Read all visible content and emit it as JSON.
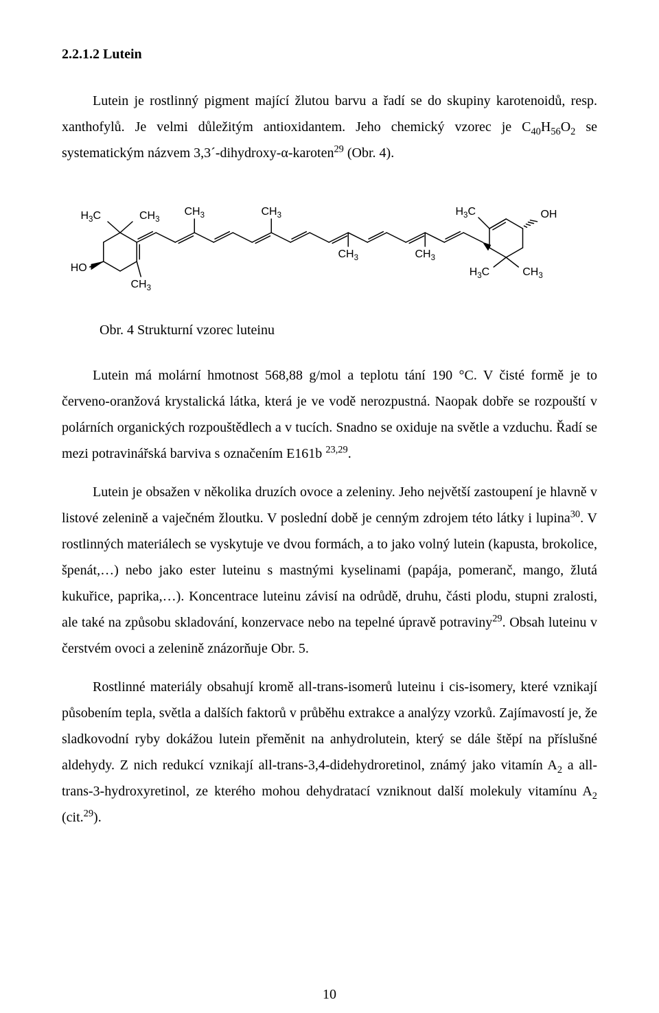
{
  "heading": "2.2.1.2 Lutein",
  "para1_before_formula": "Lutein je rostlinný pigment mající žlutou barvu a řadí se do skupiny karotenoidů, resp. xanthofylů. Je velmi důležitým antioxidantem. Jeho chemický vzorec je ",
  "formula_parts": {
    "c": "C",
    "c_sub": "40",
    "h": "H",
    "h_sub": "56",
    "o": "O",
    "o_sub": "2"
  },
  "para1_after_formula": " se systematickým názvem 3,3´-dihydroxy-α-karoten",
  "para1_sup": "29",
  "para1_tail": " (Obr. 4).",
  "fig_caption": "Obr. 4 Strukturní vzorec luteinu",
  "para2_a": "Lutein má molární hmotnost 568,88 g/mol a teplotu tání 190 °C. V čisté formě je to červeno-oranžová krystalická látka, která je ve vodě nerozpustná. Naopak dobře se rozpouští v polárních organických rozpouštědlech a v tucích. Snadno se oxiduje na světle a vzduchu. Řadí se mezi potravinářská barviva s označením E161b ",
  "para2_sup": "23,29",
  "para2_b": ".",
  "para3_a": "Lutein je obsažen v několika druzích ovoce a zeleniny. Jeho největší zastoupení je hlavně v listové zelenině a vaječném žloutku. V poslední době je cenným zdrojem této látky i lupina",
  "para3_sup1": "30",
  "para3_b": ". V rostlinných materiálech se vyskytuje ve dvou formách, a to jako volný lutein (kapusta, brokolice, špenát,…) nebo jako ester luteinu s mastnými kyselinami (papája, pomeranč, mango, žlutá kukuřice, paprika,…). Koncentrace luteinu závisí na odrůdě, druhu, části plodu, stupni zralosti, ale také na způsobu skladování, konzervace nebo na tepelné úpravě potraviny",
  "para3_sup2": "29",
  "para3_c": ". Obsah luteinu v čerstvém ovoci a zelenině znázorňuje Obr. 5.",
  "para4_a": "Rostlinné materiály obsahují kromě all-trans-isomerů luteinu i cis-isomery, které vznikají působením tepla, světla a dalších faktorů v průběhu extrakce a analýzy vzorků. Zajímavostí je, že sladkovodní ryby dokážou lutein přeměnit na anhydrolutein, který se dále štěpí na příslušné aldehydy. Z nich redukcí vznikají all-trans-3,4-didehydroretinol, známý jako vitamín A",
  "para4_sub1": "2",
  "para4_b": " a all-trans-3-hydroxyretinol, ze kterého mohou dehydratací vzniknout další molekuly vitamínu A",
  "para4_sub2": "2",
  "para4_c": " (cit.",
  "para4_sup": "29",
  "para4_d": ").",
  "page_number": "10",
  "structure": {
    "stroke": "#000000",
    "stroke_width": 1.5,
    "font": "Helvetica, Arial, sans-serif",
    "font_size": 16,
    "labels": {
      "H3C": "H",
      "H3C_sub": "3",
      "H3C_tail": "C",
      "CH3": "CH",
      "CH3_sub": "3",
      "HO": "HO",
      "OH": "OH"
    },
    "wedge_fill": "#000000"
  }
}
